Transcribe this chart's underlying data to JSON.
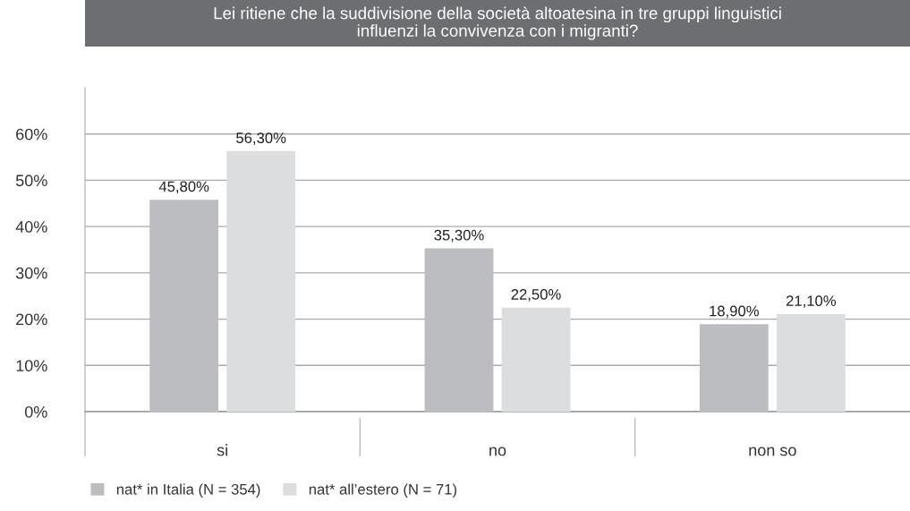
{
  "chart_data": {
    "type": "bar",
    "title": "Lei ritiene che la suddivisione della società altoatesina in tre gruppi linguistici\ninfluenzi la convivenza con i migranti?",
    "categories": [
      "si",
      "no",
      "non so"
    ],
    "series": [
      {
        "name": "nat* in Italia (N = 354)",
        "color": "#bcbdc0",
        "values": [
          45.8,
          35.3,
          18.9
        ],
        "value_labels": [
          "45,80%",
          "35,30%",
          "18,90%"
        ]
      },
      {
        "name": "nat* all’estero (N = 71)",
        "color": "#dcdddf",
        "values": [
          56.3,
          22.5,
          21.1
        ],
        "value_labels": [
          "56,30%",
          "22,50%",
          "21,10%"
        ]
      }
    ],
    "ylim": [
      0,
      70
    ],
    "yticks": [
      {
        "value": 0,
        "label": "0%"
      },
      {
        "value": 10,
        "label": "10%"
      },
      {
        "value": 20,
        "label": "20%"
      },
      {
        "value": 30,
        "label": "30%"
      },
      {
        "value": 40,
        "label": "40%"
      },
      {
        "value": 50,
        "label": "50%"
      },
      {
        "value": 60,
        "label": "60%"
      }
    ],
    "grid": "y",
    "legend": "bottom left"
  }
}
